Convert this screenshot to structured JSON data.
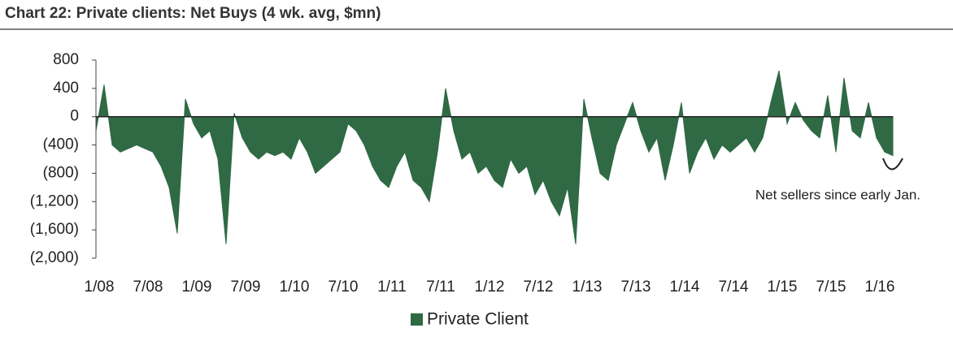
{
  "chart_data": {
    "type": "area",
    "title": "Chart 22: Private clients: Net Buys (4 wk. avg, $mn)",
    "color": "#2f6a45",
    "x": [
      "2008-01",
      "2008-02",
      "2008-03",
      "2008-04",
      "2008-05",
      "2008-06",
      "2008-07",
      "2008-08",
      "2008-09",
      "2008-10",
      "2008-11",
      "2008-12",
      "2009-01",
      "2009-02",
      "2009-03",
      "2009-04",
      "2009-05",
      "2009-06",
      "2009-07",
      "2009-08",
      "2009-09",
      "2009-10",
      "2009-11",
      "2009-12",
      "2010-01",
      "2010-02",
      "2010-03",
      "2010-04",
      "2010-05",
      "2010-06",
      "2010-07",
      "2010-08",
      "2010-09",
      "2010-10",
      "2010-11",
      "2010-12",
      "2011-01",
      "2011-02",
      "2011-03",
      "2011-04",
      "2011-05",
      "2011-06",
      "2011-07",
      "2011-08",
      "2011-09",
      "2011-10",
      "2011-11",
      "2011-12",
      "2012-01",
      "2012-02",
      "2012-03",
      "2012-04",
      "2012-05",
      "2012-06",
      "2012-07",
      "2012-08",
      "2012-09",
      "2012-10",
      "2012-11",
      "2012-12",
      "2013-01",
      "2013-02",
      "2013-03",
      "2013-04",
      "2013-05",
      "2013-06",
      "2013-07",
      "2013-08",
      "2013-09",
      "2013-10",
      "2013-11",
      "2013-12",
      "2014-01",
      "2014-02",
      "2014-03",
      "2014-04",
      "2014-05",
      "2014-06",
      "2014-07",
      "2014-08",
      "2014-09",
      "2014-10",
      "2014-11",
      "2014-12",
      "2015-01",
      "2015-02",
      "2015-03",
      "2015-04",
      "2015-05",
      "2015-06",
      "2015-07",
      "2015-08",
      "2015-09",
      "2015-10",
      "2015-11",
      "2015-12",
      "2016-01",
      "2016-02",
      "2016-03"
    ],
    "series": [
      {
        "name": "Private Client",
        "color": "#2f6a45",
        "values": [
          -200,
          450,
          -400,
          -500,
          -450,
          -400,
          -450,
          -500,
          -700,
          -1000,
          -1650,
          250,
          -100,
          -300,
          -200,
          -600,
          -1800,
          50,
          -300,
          -500,
          -600,
          -500,
          -550,
          -500,
          -600,
          -300,
          -500,
          -800,
          -700,
          -600,
          -500,
          -100,
          -200,
          -400,
          -700,
          -900,
          -1000,
          -700,
          -500,
          -900,
          -1000,
          -1200,
          -500,
          400,
          -200,
          -600,
          -500,
          -800,
          -700,
          -900,
          -1000,
          -600,
          -800,
          -700,
          -1100,
          -900,
          -1200,
          -1400,
          -1000,
          -1800,
          250,
          -300,
          -800,
          -900,
          -400,
          -100,
          200,
          -200,
          -500,
          -300,
          -900,
          -400,
          200,
          -800,
          -500,
          -300,
          -600,
          -400,
          -500,
          -400,
          -300,
          -500,
          -300,
          200,
          650,
          -100,
          200,
          -50,
          -200,
          -300,
          300,
          -500,
          550,
          -200,
          -300,
          200,
          -300,
          -500,
          -550
        ]
      }
    ],
    "xlim": [
      "2008-01",
      "2016-03"
    ],
    "xticks": [
      {
        "value": "2008-01",
        "label": "1/08"
      },
      {
        "value": "2008-07",
        "label": "7/08"
      },
      {
        "value": "2009-01",
        "label": "1/09"
      },
      {
        "value": "2009-07",
        "label": "7/09"
      },
      {
        "value": "2010-01",
        "label": "1/10"
      },
      {
        "value": "2010-07",
        "label": "7/10"
      },
      {
        "value": "2011-01",
        "label": "1/11"
      },
      {
        "value": "2011-07",
        "label": "7/11"
      },
      {
        "value": "2012-01",
        "label": "1/12"
      },
      {
        "value": "2012-07",
        "label": "7/12"
      },
      {
        "value": "2013-01",
        "label": "1/13"
      },
      {
        "value": "2013-07",
        "label": "7/13"
      },
      {
        "value": "2014-01",
        "label": "1/14"
      },
      {
        "value": "2014-07",
        "label": "7/14"
      },
      {
        "value": "2015-01",
        "label": "1/15"
      },
      {
        "value": "2015-07",
        "label": "7/15"
      },
      {
        "value": "2016-01",
        "label": "1/16"
      }
    ],
    "ylim": [
      -2000,
      800
    ],
    "yticks": [
      800,
      400,
      0,
      {
        "value": -400,
        "label": "(400)"
      },
      {
        "value": -800,
        "label": "(800)"
      },
      {
        "value": -1200,
        "label": "(1,200)"
      },
      {
        "value": -1600,
        "label": "(1,600)"
      },
      {
        "value": -2000,
        "label": "(2,000)"
      }
    ],
    "annotation": "Net sellers since early Jan.",
    "legend": "bottom"
  }
}
